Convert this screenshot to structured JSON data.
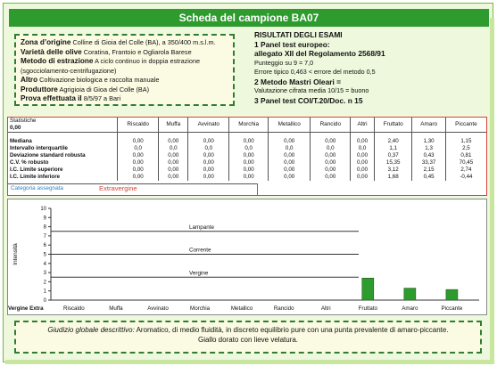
{
  "title": "Scheda del campione BA07",
  "info": {
    "zona_label": "Zona d’origine",
    "zona_value": "Colline di Gioia del Colle (BA), a 350/400 m.s.l.m.",
    "varieta_label": "Varietà delle olive",
    "varieta_value": "Coratina, Frantoio e Ogliarola Barese",
    "metodo_label": "Metodo di estrazione",
    "metodo_value": "A ciclo continuo in doppia estrazione",
    "metodo_value2": "(sgocciolamento-centrifugazione)",
    "altro_label": "Altro",
    "altro_value": "Coltivazione biologica e raccolta manuale",
    "produttore_label": "Produttore",
    "produttore_value": "Agrigioia di Gioa del Colle (BA)",
    "prova_label": "Prova effettuata il",
    "prova_value": "8/5/97 a Bari"
  },
  "results": {
    "heading": "RISULTATI DEGLI ESAMI",
    "l1": "1 Panel test europeo:",
    "l2": "allegato XII del Regolamento 2568/91",
    "l3": "Punteggio su 9 = 7,0",
    "l4": "Errore tipico 0,463 < errore del metodo 0,5",
    "l5": "2 Metodo Mastri Oleari =",
    "l6": "Valutazione cifrata media 10/15 = buono",
    "l7": "3 Panel test COI/T.20/Doc. n 15"
  },
  "stats": {
    "corner1": "Statistiche",
    "corner2": "0,00",
    "columns": [
      "Riscaldo",
      "Muffa",
      "Avvinato",
      "Morchia",
      "Metallico",
      "Rancido",
      "Altri",
      "Fruttato",
      "Amaro",
      "Piccante"
    ],
    "rows": [
      {
        "label": "Mediana",
        "values": [
          "0,00",
          "0,00",
          "0,00",
          "0,00",
          "0,00",
          "0,00",
          "0,00",
          "2,40",
          "1,30",
          "1,15"
        ]
      },
      {
        "label": "Intervallo interquartile",
        "values": [
          "0,0",
          "0,0",
          "0,0",
          "0,0",
          "0,0",
          "0,0",
          "0,0",
          "1,1",
          "1,3",
          "2,5"
        ]
      },
      {
        "label": "Deviazione standard robusta",
        "values": [
          "0,00",
          "0,00",
          "0,00",
          "0,00",
          "0,00",
          "0,00",
          "0,00",
          "0,37",
          "0,43",
          "0,81"
        ]
      },
      {
        "label": "C.V. % robusto",
        "values": [
          "0,00",
          "0,00",
          "0,00",
          "0,00",
          "0,00",
          "0,00",
          "0,00",
          "15,35",
          "33,37",
          "70,45"
        ]
      },
      {
        "label": "I.C. Limite superiore",
        "values": [
          "0,00",
          "0,00",
          "0,00",
          "0,00",
          "0,00",
          "0,00",
          "0,00",
          "3,12",
          "2,15",
          "2,74"
        ]
      },
      {
        "label": "I.C. Limite inferiore",
        "values": [
          "0,00",
          "0,00",
          "0,00",
          "0,00",
          "0,00",
          "0,00",
          "0,00",
          "1,68",
          "0,45",
          "-0,44"
        ]
      }
    ],
    "category_label": "Categoria assegnata",
    "category_value": "Extravergine"
  },
  "chart_data": {
    "type": "bar",
    "ylabel": "Intensità",
    "ylim": [
      0,
      10
    ],
    "yticks": [
      "0",
      "1",
      "2",
      "3",
      "4",
      "5",
      "6",
      "7",
      "8",
      "9",
      "10"
    ],
    "categories": [
      "Riscaldo",
      "Muffa",
      "Avvinato",
      "Morchia",
      "Metallico",
      "Rancido",
      "Altri",
      "Fruttato",
      "Amaro",
      "Piccante"
    ],
    "first_label": "Vergine Extra",
    "values": [
      0,
      0,
      0,
      0,
      0,
      0,
      0,
      2.4,
      1.3,
      1.15
    ],
    "bar_color": "#2e9b2e",
    "reference_lines": [
      {
        "label": "Lampante",
        "y": 7.5
      },
      {
        "label": "Corrente",
        "y": 5.0
      },
      {
        "label": "Vergine",
        "y": 2.5
      }
    ],
    "grid": false
  },
  "footer": {
    "line1_italic": "Giudizio globale descrittivo:",
    "line1_rest": " Aromatico, di medio fluidità, in discreto equilibrio pure con una punta prevalente di amaro-piccante.",
    "line2": "Giallo dorato con lieve velatura."
  }
}
